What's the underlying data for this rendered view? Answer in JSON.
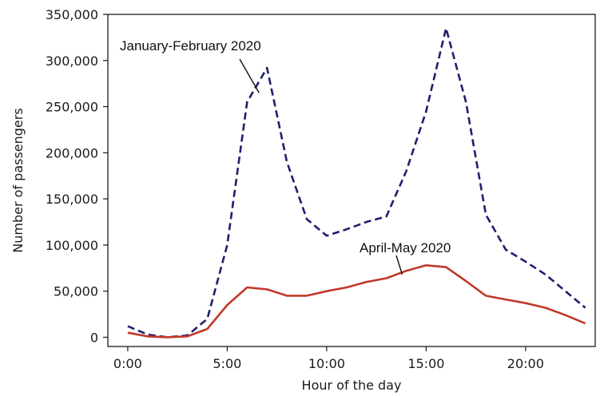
{
  "chart_data": {
    "type": "line",
    "xlabel": "Hour of the day",
    "ylabel": "Number of passengers",
    "xlim": [
      -1,
      23.5
    ],
    "ylim": [
      -10000,
      350000
    ],
    "x_ticks": [
      0,
      5,
      10,
      15,
      20
    ],
    "x_tick_labels": [
      "0:00",
      "5:00",
      "10:00",
      "15:00",
      "20:00"
    ],
    "y_ticks": [
      0,
      50000,
      100000,
      150000,
      200000,
      250000,
      300000,
      350000
    ],
    "y_tick_labels": [
      "0",
      "50,000",
      "100,000",
      "150,000",
      "200,000",
      "250,000",
      "300,000",
      "350,000"
    ],
    "grid": false,
    "legend": "none",
    "series": [
      {
        "name": "January-February 2020",
        "color": "#1f1f6e",
        "line_style": "dashed",
        "x": [
          0,
          1,
          2,
          3,
          4,
          5,
          6,
          7,
          8,
          9,
          10,
          11,
          12,
          13,
          14,
          15,
          16,
          17,
          18,
          19,
          20,
          21,
          22,
          23
        ],
        "values": [
          12000,
          3000,
          0,
          2000,
          20000,
          100000,
          255000,
          292000,
          190000,
          128000,
          110000,
          117000,
          125000,
          131000,
          180000,
          245000,
          335000,
          255000,
          133000,
          95000,
          82000,
          68000,
          50000,
          32000
        ]
      },
      {
        "name": "April-May 2020",
        "color": "#c0392b",
        "line_style": "solid",
        "x": [
          0,
          1,
          2,
          3,
          4,
          5,
          6,
          7,
          8,
          9,
          10,
          11,
          12,
          13,
          14,
          15,
          16,
          17,
          18,
          19,
          20,
          21,
          22,
          23
        ],
        "values": [
          5000,
          1000,
          0,
          1000,
          9000,
          35000,
          54000,
          52000,
          45000,
          45000,
          50000,
          54000,
          60000,
          64000,
          72000,
          78000,
          76000,
          61000,
          45000,
          41000,
          37000,
          32000,
          24000,
          15000
        ]
      }
    ],
    "annotations": [
      {
        "text": "January-February 2020",
        "pointer_x": 6.6,
        "pointer_y": 265000
      },
      {
        "text": "April-May 2020",
        "pointer_x": 13.8,
        "pointer_y": 68000
      }
    ]
  }
}
